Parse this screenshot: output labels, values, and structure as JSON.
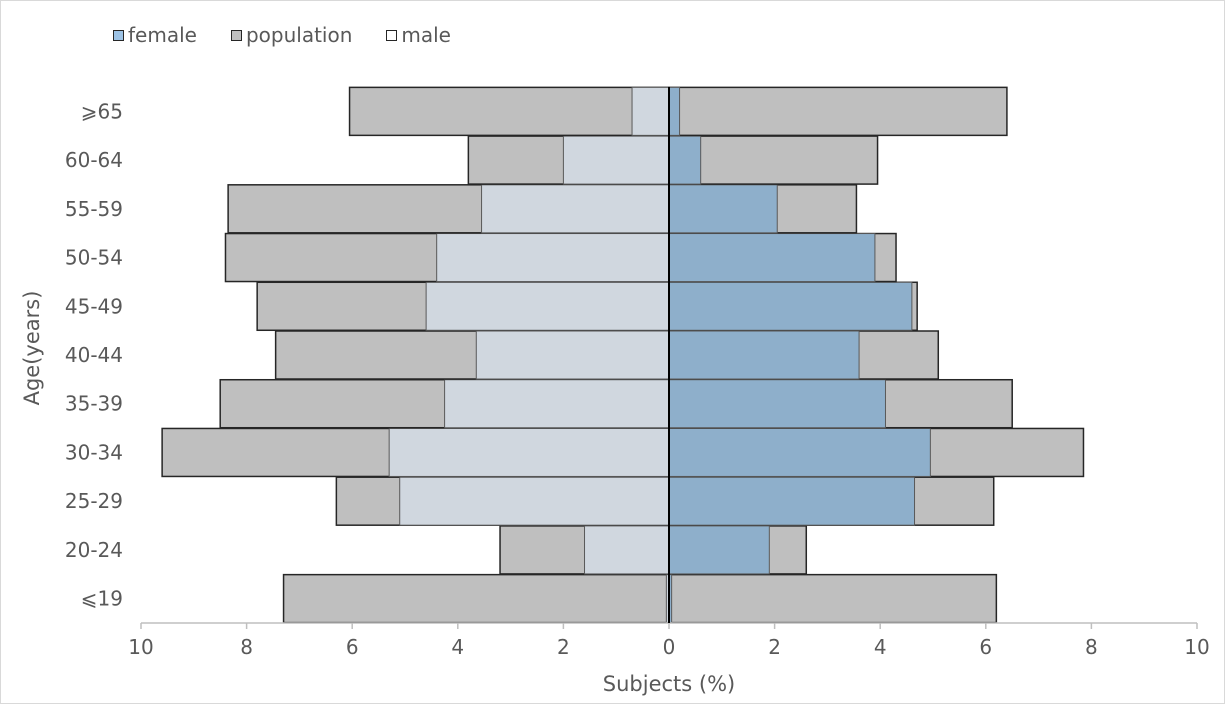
{
  "chart_data": {
    "type": "bar",
    "orientation": "horizontal",
    "layout": "population-pyramid",
    "categories": [
      "≤19",
      "20-24",
      "25-29",
      "30-34",
      "35-39",
      "40-44",
      "45-49",
      "50-54",
      "55-59",
      "60-64",
      "≥65"
    ],
    "category_labels": [
      "⩽19",
      "20-24",
      "25-29",
      "30-34",
      "35-39",
      "40-44",
      "45-49",
      "50-54",
      "55-59",
      "60-64",
      "⩾65"
    ],
    "legend": {
      "placement": "top-left",
      "entries": [
        {
          "label": "female",
          "color": "#9dc3e6"
        },
        {
          "label": "population",
          "color": "#bfbfbf"
        },
        {
          "label": "male",
          "color": "#ffffff"
        }
      ]
    },
    "series": [
      {
        "name": "male",
        "side": "left",
        "color": "#ddebf7",
        "values": [
          0.05,
          1.6,
          5.1,
          5.3,
          4.25,
          3.65,
          4.6,
          4.4,
          3.55,
          2.0,
          0.7
        ]
      },
      {
        "name": "population",
        "side": "left",
        "color": "#bfbfbf",
        "values": [
          7.3,
          3.2,
          6.3,
          9.6,
          8.5,
          7.45,
          7.8,
          8.4,
          8.35,
          3.8,
          6.05
        ]
      },
      {
        "name": "female",
        "side": "right",
        "color": "#8eafcb",
        "values": [
          0.05,
          1.9,
          4.65,
          4.95,
          4.1,
          3.6,
          4.6,
          3.9,
          2.05,
          0.6,
          0.2
        ]
      },
      {
        "name": "population",
        "side": "right",
        "color": "#bfbfbf",
        "values": [
          6.2,
          2.6,
          6.15,
          7.85,
          6.5,
          5.1,
          4.7,
          4.3,
          3.55,
          3.95,
          6.4
        ]
      }
    ],
    "overlap_colors": {
      "left": "#d0d7df",
      "right": "#8eafcb",
      "left_light": "#eef5fc",
      "right_light": "#a9cbea"
    },
    "xlabel": "Subjects (%)",
    "ylabel": "Age(years)",
    "xlim": [
      -10,
      10
    ],
    "xticks": [
      -10,
      -8,
      -6,
      -4,
      -2,
      0,
      2,
      4,
      6,
      8,
      10
    ],
    "xtick_labels": [
      "10",
      "8",
      "6",
      "4",
      "2",
      "0",
      "2",
      "4",
      "6",
      "8",
      "10"
    ],
    "grid": false
  }
}
